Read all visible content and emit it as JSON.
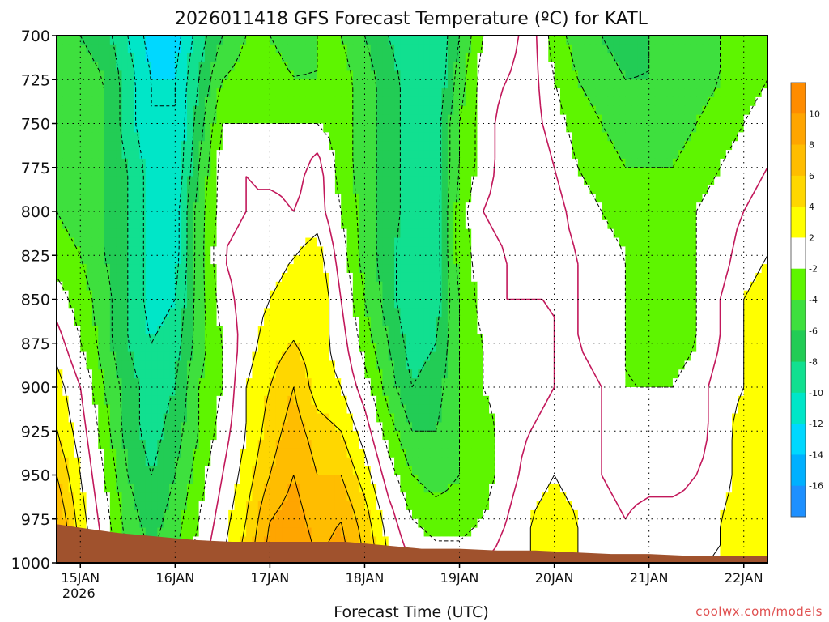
{
  "chart_data": {
    "type": "heatmap",
    "title": "2026011418 GFS Forecast Temperature (ºC) for KATL",
    "xlabel": "Forecast Time (UTC)",
    "ylabel": "",
    "credit": "coolwx.com/models",
    "y_axis": {
      "scale": "pressure-hPa",
      "inverted": true,
      "range": [
        700,
        1000
      ],
      "ticks": [
        700,
        725,
        750,
        775,
        800,
        825,
        850,
        875,
        900,
        925,
        950,
        975,
        1000
      ]
    },
    "x_axis": {
      "unit": "day",
      "range": [
        14.75,
        22.25
      ],
      "ticks": [
        {
          "value": 15,
          "label": "15JAN",
          "sublabel": "2026"
        },
        {
          "value": 16,
          "label": "16JAN",
          "sublabel": ""
        },
        {
          "value": 17,
          "label": "17JAN",
          "sublabel": ""
        },
        {
          "value": 18,
          "label": "18JAN",
          "sublabel": ""
        },
        {
          "value": 19,
          "label": "19JAN",
          "sublabel": ""
        },
        {
          "value": 20,
          "label": "20JAN",
          "sublabel": ""
        },
        {
          "value": 21,
          "label": "21JAN",
          "sublabel": ""
        },
        {
          "value": 22,
          "label": "22JAN",
          "sublabel": ""
        }
      ]
    },
    "grid": true,
    "legend": {
      "placement": "right",
      "labels": [
        "10",
        "8",
        "6",
        "4",
        "2",
        "-2",
        "-4",
        "-6",
        "-8",
        "-10",
        "-12",
        "-14",
        "-16"
      ],
      "bins": [
        {
          "min": 10,
          "max": 12,
          "color": "#ff8c00"
        },
        {
          "min": 8,
          "max": 10,
          "color": "#ffa500"
        },
        {
          "min": 6,
          "max": 8,
          "color": "#ffbd00"
        },
        {
          "min": 4,
          "max": 6,
          "color": "#ffd700"
        },
        {
          "min": 2,
          "max": 4,
          "color": "#ffff00"
        },
        {
          "min": -2,
          "max": 2,
          "color": "#ffffff"
        },
        {
          "min": -4,
          "max": -2,
          "color": "#5ef500"
        },
        {
          "min": -6,
          "max": -4,
          "color": "#3ee03e"
        },
        {
          "min": -8,
          "max": -6,
          "color": "#22cc55"
        },
        {
          "min": -10,
          "max": -8,
          "color": "#11e090"
        },
        {
          "min": -12,
          "max": -10,
          "color": "#00e6c8"
        },
        {
          "min": -14,
          "max": -12,
          "color": "#00d8ff"
        },
        {
          "min": -16,
          "max": -14,
          "color": "#00b0ff"
        },
        {
          "min": -18,
          "max": -16,
          "color": "#1e90ff"
        }
      ]
    },
    "ground_color": "#a0522d",
    "zero_line_color": "#c2185b",
    "surface": {
      "x": [
        14.75,
        15.0,
        15.4,
        15.8,
        16.2,
        16.6,
        17.0,
        17.4,
        17.8,
        18.2,
        18.6,
        19.0,
        19.4,
        19.8,
        20.2,
        20.6,
        21.0,
        21.4,
        21.8,
        22.25
      ],
      "p": [
        978,
        980,
        983,
        985,
        987,
        988,
        988,
        988,
        988,
        990,
        992,
        992,
        993,
        993,
        994,
        995,
        995,
        996,
        996,
        996
      ]
    },
    "times": [
      14.75,
      15.0,
      15.25,
      15.5,
      15.75,
      16.0,
      16.25,
      16.5,
      16.75,
      17.0,
      17.25,
      17.5,
      17.75,
      18.0,
      18.25,
      18.5,
      18.75,
      19.0,
      19.25,
      19.5,
      19.75,
      20.0,
      20.25,
      20.5,
      20.75,
      21.0,
      21.25,
      21.5,
      21.75,
      22.0,
      22.25
    ],
    "levels": [
      700,
      725,
      750,
      775,
      800,
      825,
      850,
      875,
      900,
      925,
      950,
      975,
      1000
    ],
    "temperature": [
      [
        -6,
        -6,
        -7,
        -10,
        -13,
        -13,
        -9,
        -6,
        -4,
        -4,
        -5,
        -4,
        -4,
        -6,
        -8,
        -10,
        -10,
        -6,
        -2,
        -1,
        1,
        -3,
        -5,
        -6,
        -7,
        -6,
        -6,
        -5,
        -4,
        -3,
        -3
      ],
      [
        -5,
        -5,
        -6,
        -9,
        -12,
        -12,
        -8,
        -4,
        -3,
        -3,
        -4,
        -4,
        -3,
        -5,
        -7,
        -9,
        -10,
        -5,
        -1,
        0,
        1,
        -2,
        -4,
        -5,
        -6,
        -6,
        -6,
        -5,
        -4,
        -3,
        -2
      ],
      [
        -5,
        -5,
        -6,
        -9,
        -12,
        -12,
        -7,
        -2,
        -2,
        -2,
        -2,
        -2,
        -3,
        -5,
        -7,
        -9,
        -9,
        -4,
        -1,
        1,
        1,
        -1,
        -3,
        -4,
        -5,
        -5,
        -5,
        -4,
        -3,
        -2,
        -1
      ],
      [
        -5,
        -5,
        -6,
        -8,
        -11,
        -12,
        -6,
        -1,
        0,
        -1,
        -1,
        1,
        -3,
        -5,
        -7,
        -9,
        -9,
        -4,
        -1,
        1,
        2,
        0,
        -2,
        -3,
        -4,
        -4,
        -4,
        -3,
        -2,
        -1,
        0
      ],
      [
        -4,
        -5,
        -6,
        -8,
        -11,
        -11,
        -5,
        -1,
        0,
        1,
        0,
        1,
        -2,
        -5,
        -7,
        -9,
        -9,
        -3,
        0,
        1,
        1,
        1,
        -1,
        -2,
        -3,
        -3,
        -3,
        -2,
        -1,
        0,
        1
      ],
      [
        -3,
        -4,
        -6,
        -8,
        -11,
        -11,
        -5,
        0,
        1,
        1,
        2,
        3,
        -1,
        -5,
        -7,
        -10,
        -9,
        -3,
        -1,
        0,
        1,
        1,
        0,
        -1,
        -2,
        -3,
        -3,
        -2,
        -1,
        1,
        2
      ],
      [
        -1,
        -3,
        -5,
        -8,
        -11,
        -10,
        -5,
        -1,
        1,
        2,
        3,
        4,
        0,
        -4,
        -7,
        -10,
        -9,
        -4,
        -1,
        0,
        0,
        0,
        0,
        -1,
        -2,
        -3,
        -3,
        -2,
        0,
        2,
        3
      ],
      [
        1,
        -2,
        -5,
        -8,
        -10,
        -9,
        -5,
        -2,
        1,
        3,
        4,
        3,
        1,
        -3,
        -6,
        -9,
        -8,
        -4,
        -2,
        -1,
        -1,
        0,
        0,
        -1,
        -2,
        -3,
        -3,
        -2,
        0,
        2,
        4
      ],
      [
        3,
        0,
        -4,
        -7,
        -9,
        -8,
        -4,
        -2,
        2,
        4,
        6,
        3,
        2,
        -1,
        -5,
        -8,
        -7,
        -4,
        -2,
        -1,
        -1,
        0,
        1,
        0,
        -2,
        -2,
        -2,
        -1,
        1,
        2,
        4
      ],
      [
        4,
        1,
        -3,
        -7,
        -9,
        -7,
        -4,
        -1,
        2,
        5,
        7,
        5,
        4,
        1,
        -3,
        -6,
        -6,
        -4,
        -3,
        -1,
        0,
        1,
        1,
        0,
        -1,
        -2,
        -2,
        -1,
        1,
        3,
        4
      ],
      [
        6,
        2,
        -2,
        -6,
        -8,
        -6,
        -3,
        0,
        3,
        6,
        8,
        6,
        6,
        3,
        -1,
        -4,
        -5,
        -4,
        -3,
        -1,
        1,
        2,
        1,
        0,
        -1,
        -1,
        -1,
        0,
        1,
        3,
        4
      ],
      [
        8,
        3,
        -1,
        -5,
        -7,
        -5,
        -2,
        1,
        4,
        8,
        9,
        7,
        8,
        5,
        1,
        -2,
        -3,
        -3,
        -2,
        0,
        2,
        3,
        2,
        1,
        0,
        1,
        1,
        1,
        2,
        3,
        4
      ],
      [
        9,
        4,
        0,
        -4,
        -6,
        -4,
        -1,
        2,
        5,
        9,
        10,
        8,
        9,
        6,
        2,
        0,
        -1,
        -1,
        0,
        1,
        2,
        3,
        2,
        1,
        1,
        2,
        2,
        2,
        2,
        3,
        4
      ]
    ]
  }
}
